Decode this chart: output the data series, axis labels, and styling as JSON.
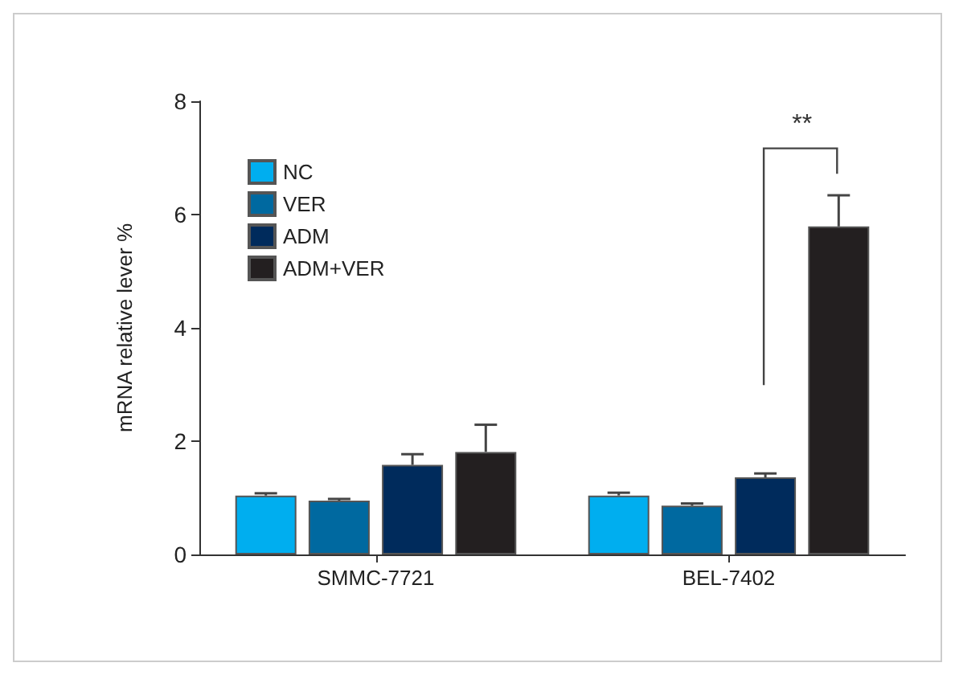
{
  "chart_data": {
    "type": "bar",
    "ylabel": "mRNA relative lever %",
    "categories": [
      "SMMC-7721",
      "BEL-7402"
    ],
    "series": [
      {
        "name": "NC",
        "color": "#00aeef",
        "values": [
          1.04,
          1.04
        ],
        "errors": [
          0.04,
          0.05
        ]
      },
      {
        "name": "VER",
        "color": "#0069a0",
        "values": [
          0.95,
          0.86
        ],
        "errors": [
          0.03,
          0.04
        ]
      },
      {
        "name": "ADM",
        "color": "#002b5c",
        "values": [
          1.58,
          1.36
        ],
        "errors": [
          0.19,
          0.07
        ]
      },
      {
        "name": "ADM+VER",
        "color": "#231f20",
        "values": [
          1.81,
          5.79
        ],
        "errors": [
          0.48,
          0.55
        ]
      }
    ],
    "ylim": [
      0,
      8
    ],
    "yticks": [
      0,
      2,
      4,
      6,
      8
    ],
    "grid": false,
    "legend": "top left",
    "annotations": [
      "**"
    ]
  }
}
